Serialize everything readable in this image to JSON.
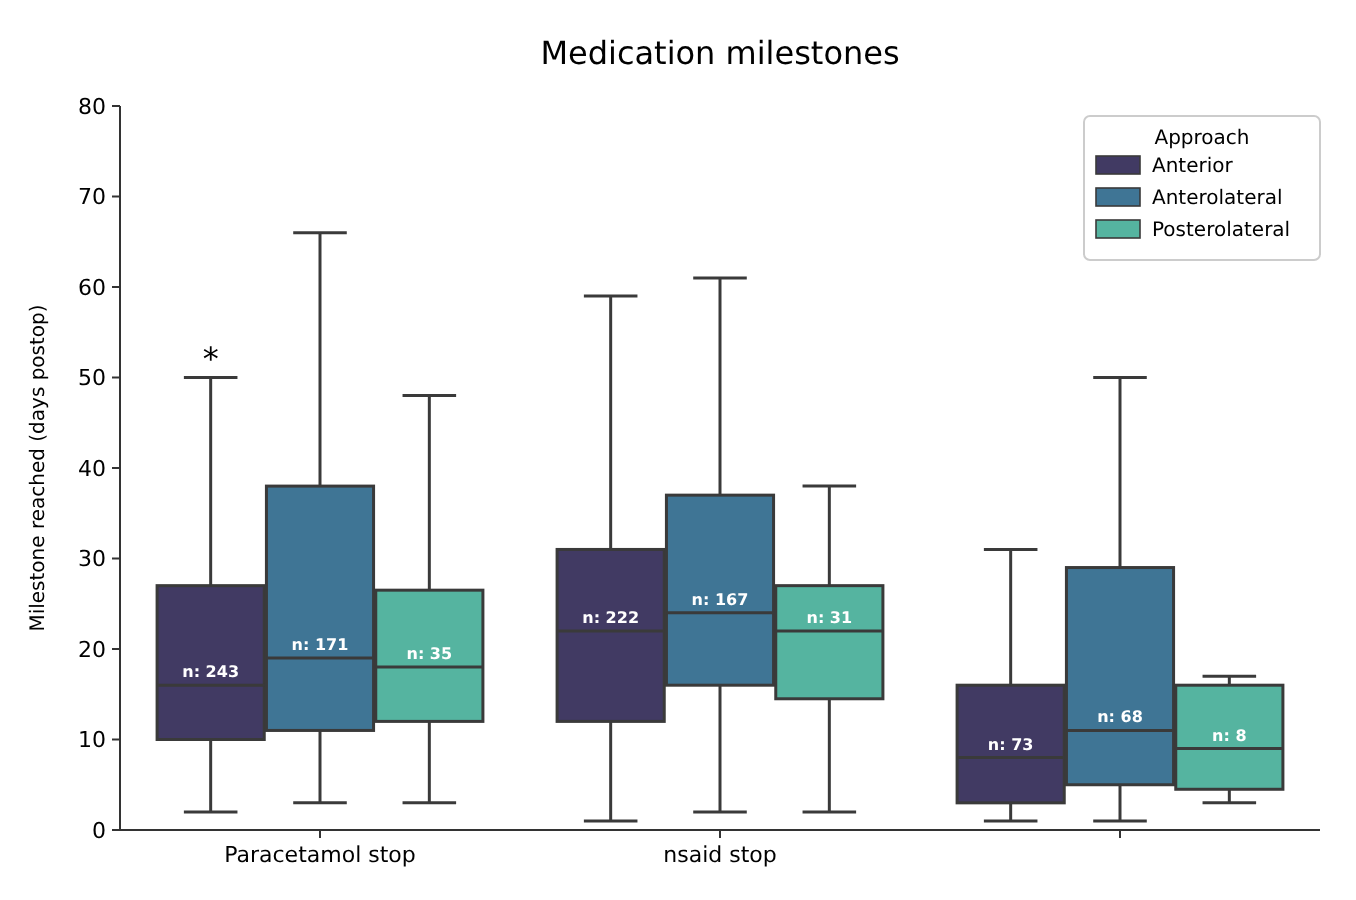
{
  "chart_data": {
    "type": "box",
    "title": "Medication milestones",
    "ylabel": "Milestone reached (days postop)",
    "legend_title": "Approach",
    "legend": "top right",
    "grid": false,
    "categories": [
      "Paracetamol stop",
      "nsaid stop",
      null
    ],
    "ylim": [
      0,
      80
    ],
    "yticks": [
      0,
      10,
      20,
      30,
      40,
      50,
      60,
      70,
      80
    ],
    "series": [
      {
        "name": "Anterior",
        "color": "#413a63",
        "value_labels": [
          "n: 243",
          "n: 222",
          "n: 73"
        ],
        "boxes": [
          {
            "low": 2,
            "q1": 10,
            "median": 16,
            "q3": 27,
            "high": 50
          },
          {
            "low": 1,
            "q1": 12,
            "median": 22,
            "q3": 31,
            "high": 59
          },
          {
            "low": 1,
            "q1": 3,
            "median": 8,
            "q3": 16,
            "high": 31
          }
        ]
      },
      {
        "name": "Anterolateral",
        "color": "#3f7595",
        "value_labels": [
          "n: 171",
          "n: 167",
          "n: 68"
        ],
        "boxes": [
          {
            "low": 3,
            "q1": 11,
            "median": 19,
            "q3": 38,
            "high": 66
          },
          {
            "low": 2,
            "q1": 16,
            "median": 24,
            "q3": 37,
            "high": 61
          },
          {
            "low": 1,
            "q1": 5,
            "median": 11,
            "q3": 29,
            "high": 50
          }
        ]
      },
      {
        "name": "Posterolateral",
        "color": "#55b4a0",
        "value_labels": [
          "n: 35",
          "n: 31",
          "n: 8"
        ],
        "boxes": [
          {
            "low": 3,
            "q1": 12,
            "median": 18,
            "q3": 26.5,
            "high": 48
          },
          {
            "low": 2,
            "q1": 14.5,
            "median": 22,
            "q3": 27,
            "high": 38
          },
          {
            "low": 3,
            "q1": 4.5,
            "median": 9,
            "q3": 16,
            "high": 17
          }
        ]
      }
    ],
    "annotations": [
      "*"
    ]
  }
}
